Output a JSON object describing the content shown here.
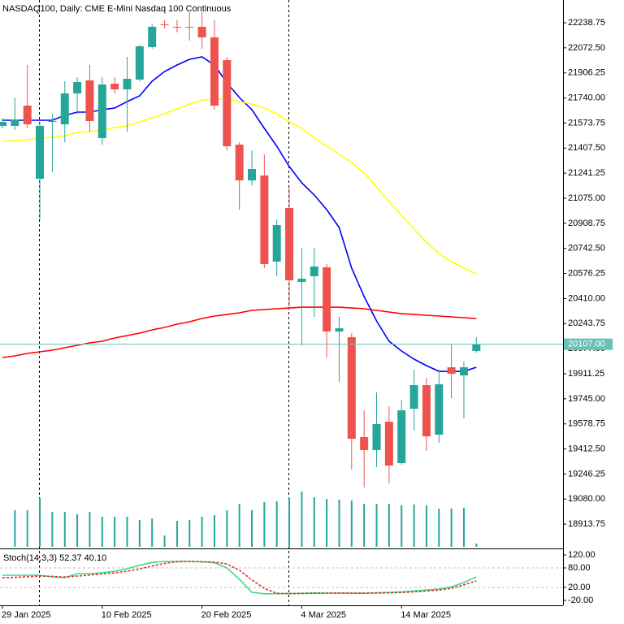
{
  "chart_data": [
    {
      "type": "candlestick",
      "title": "NASDAQ100, Daily:  CME E-Mini Nasdaq 100 Continuous",
      "categories": [
        "29 Jan 2025",
        null,
        null,
        null,
        null,
        null,
        null,
        null,
        "10 Feb 2025",
        null,
        null,
        null,
        null,
        null,
        null,
        null,
        "20 Feb 2025",
        null,
        null,
        null,
        null,
        null,
        null,
        null,
        "4 Mar 2025",
        null,
        null,
        null,
        null,
        null,
        null,
        null,
        "14 Mar 2025",
        null,
        null,
        null,
        null,
        null,
        null
      ],
      "open": [
        21554.5,
        21554.5,
        21689.2,
        21204.2,
        21581.4,
        21565.2,
        21770.0,
        21856.2,
        21473.6,
        21834.6,
        21796.9,
        21861.6,
        22077.1,
        22228.0,
        22211.8,
        22211.8,
        22211.8,
        22141.8,
        21990.9,
        21430.5,
        21193.5,
        21225.8,
        20654.7,
        21010.3,
        20520.0,
        20557.7,
        20616.9,
        20191.3,
        20153.6,
        19490.9,
        19404.6,
        19593.2,
        19318.4,
        19679.4,
        19835.7,
        19507.0,
        19954.2,
        19900.3,
        20062.0
      ],
      "high": [
        21608.3,
        21743.0,
        21958.6,
        21581.4,
        21635.3,
        21850.8,
        21877.7,
        21958.6,
        21877.7,
        21877.7,
        22012.4,
        22093.3,
        22228.0,
        22254.9,
        22254.9,
        22308.8,
        22308.8,
        22254.9,
        22012.4,
        21446.7,
        21392.8,
        21365.9,
        20934.8,
        21150.4,
        20746.3,
        20746.3,
        20638.5,
        20288.3,
        20180.5,
        19668.7,
        19787.2,
        19695.6,
        19738.7,
        19938.1,
        19884.2,
        19938.1,
        20110.5,
        19991.9,
        20153.6
      ],
      "low": [
        21538.3,
        21527.5,
        21538.3,
        20934.8,
        21247.3,
        21446.7,
        21635.3,
        21516.7,
        21430.5,
        21770.0,
        21516.7,
        21850.8,
        22066.3,
        22201.0,
        22174.1,
        22120.2,
        22066.3,
        21662.2,
        21392.8,
        20999.5,
        21161.1,
        20611.6,
        20557.7,
        20342.2,
        20099.7,
        20288.3,
        20018.9,
        19857.2,
        19275.3,
        19156.8,
        19291.5,
        19183.7,
        19307.7,
        19534.0,
        19399.3,
        19453.1,
        19749.5,
        19614.8,
        20051.2
      ],
      "close": [
        21581.4,
        21597.6,
        21565.2,
        21554.5,
        21586.8,
        21770.0,
        21845.4,
        21586.8,
        21829.2,
        21796.9,
        21867.0,
        22082.5,
        22211.8,
        22226.0,
        22210.0,
        22210.5,
        22141.8,
        21689.2,
        21419.8,
        21193.5,
        21268.9,
        20638.5,
        20897.1,
        20530.7,
        20541.5,
        20622.3,
        20191.3,
        20212.8,
        19480.1,
        19404.6,
        19577.1,
        19302.3,
        19668.7,
        19835.7,
        19496.2,
        19841.1,
        19911.1,
        19954.2,
        20107.0
      ],
      "up_color": "#26a69a",
      "down_color": "#ef5350",
      "series": [
        {
          "color": "#0000ff",
          "values": [
            21592.2,
            21592.2,
            21592.2,
            21592.2,
            21592.2,
            21624.5,
            21646.1,
            21646.1,
            21662.2,
            21673.0,
            21716.1,
            21753.8,
            21850.8,
            21915.5,
            21958.6,
            21996.3,
            22012.4,
            21958.6,
            21840.0,
            21743.0,
            21662.2,
            21538.3,
            21419.8,
            21285.1,
            21177.3,
            21096.5,
            20999.5,
            20881.0,
            20611.6,
            20423.0,
            20261.3,
            20126.6,
            20062.0,
            20008.1,
            19965.0,
            19927.3,
            19927.3,
            19927.3,
            19954.2
          ]
        },
        {
          "color": "#ffff00",
          "values": [
            21452.1,
            21457.5,
            21462.9,
            21473.6,
            21479.0,
            21489.8,
            21511.4,
            21516.7,
            21527.5,
            21543.7,
            21554.5,
            21581.4,
            21608.3,
            21635.3,
            21667.6,
            21699.9,
            21726.9,
            21732.3,
            21732.3,
            21716.1,
            21699.9,
            21673.0,
            21635.3,
            21581.4,
            21538.3,
            21473.6,
            21419.8,
            21365.9,
            21312.0,
            21242.0,
            21150.4,
            21053.4,
            20961.8,
            20870.2,
            20784.0,
            20708.5,
            20654.7,
            20611.6,
            20573.8
          ]
        },
        {
          "color": "#ff0000",
          "values": [
            20018.9,
            20029.7,
            20045.8,
            20056.6,
            20067.4,
            20083.5,
            20099.7,
            20115.9,
            20126.6,
            20148.2,
            20164.4,
            20180.5,
            20202.1,
            20218.2,
            20239.8,
            20256.0,
            20277.5,
            20293.7,
            20304.4,
            20315.2,
            20331.4,
            20336.8,
            20342.2,
            20347.5,
            20352.9,
            20352.9,
            20352.9,
            20352.9,
            20347.5,
            20342.2,
            20331.4,
            20320.6,
            20309.8,
            20304.4,
            20299.1,
            20293.7,
            20288.3,
            20282.9,
            20277.5
          ]
        }
      ],
      "volume": {
        "color": "#26a69a",
        "vlim": [
          0,
          100
        ],
        "values": [
          null,
          45,
          45,
          60,
          43,
          43,
          40,
          43,
          37,
          37,
          37,
          33,
          35,
          14,
          32,
          33,
          37,
          39,
          45,
          53,
          45,
          55,
          56,
          60,
          68,
          61,
          59,
          58,
          57,
          53,
          53,
          53,
          51,
          52,
          51,
          47,
          47,
          48,
          4
        ]
      },
      "ylim": [
        18763.6,
        22389.6
      ],
      "yticks": [
        {
          "value": 22238.75,
          "label": "22238.75"
        },
        {
          "value": 22072.5,
          "label": "22072.50"
        },
        {
          "value": 21906.25,
          "label": "21906.25"
        },
        {
          "value": 21740,
          "label": "21740.00"
        },
        {
          "value": 21573.75,
          "label": "21573.75"
        },
        {
          "value": 21407.5,
          "label": "21407.50"
        },
        {
          "value": 21241.25,
          "label": "21241.25"
        },
        {
          "value": 21075,
          "label": "21075.00"
        },
        {
          "value": 20908.75,
          "label": "20908.75"
        },
        {
          "value": 20742.5,
          "label": "20742.50"
        },
        {
          "value": 20576.25,
          "label": "20576.25"
        },
        {
          "value": 20410,
          "label": "20410.00"
        },
        {
          "value": 20243.75,
          "label": "20243.75"
        },
        {
          "value": 20077.5,
          "label": "20077.50"
        },
        {
          "value": 19911.25,
          "label": "19911.25"
        },
        {
          "value": 19745,
          "label": "19745.00"
        },
        {
          "value": 19578.75,
          "label": "19578.75"
        },
        {
          "value": 19412.5,
          "label": "19412.50"
        },
        {
          "value": 19246.25,
          "label": "19246.25"
        },
        {
          "value": 19080,
          "label": "19080.00"
        },
        {
          "value": 18913.75,
          "label": "18913.75"
        }
      ],
      "last_price": {
        "value": 20107,
        "label": "20107.00"
      },
      "last_price_color": "#66c2b4"
    },
    {
      "type": "line",
      "title": "Stoch(14,3,3) 52.37 40.10",
      "series": [
        {
          "color": "#3ddc84",
          "dashed": false,
          "values": [
            57.5,
            57.5,
            57.5,
            57.5,
            52.5,
            50,
            62.5,
            62.5,
            65,
            70,
            77.5,
            88,
            97,
            100,
            100,
            100,
            99,
            96,
            80,
            45,
            5,
            0.5,
            0.8,
            1.2,
            2,
            3,
            2.5,
            2.8,
            2,
            2.2,
            3.5,
            4.5,
            6,
            9,
            12,
            15,
            22,
            35,
            52.37
          ]
        },
        {
          "color": "#e03030",
          "dashed": true,
          "values": [
            50,
            51,
            53,
            55,
            54,
            52,
            55,
            58,
            62,
            65,
            70,
            77,
            86,
            94,
            99,
            100,
            99,
            98,
            92,
            73,
            43,
            17,
            2,
            1,
            1.3,
            2,
            2.5,
            2.8,
            2.5,
            2.3,
            2.7,
            3.4,
            4.7,
            6.5,
            9,
            12,
            17,
            28,
            40.1
          ]
        }
      ],
      "levels": [
        80,
        20
      ],
      "ylim": [
        -35,
        137.5
      ],
      "yticks": [
        {
          "value": 120,
          "label": "120.00"
        },
        {
          "value": 80,
          "label": "80.00"
        },
        {
          "value": 20,
          "label": "20.00"
        },
        {
          "value": -20,
          "label": "-20.00"
        }
      ]
    }
  ]
}
